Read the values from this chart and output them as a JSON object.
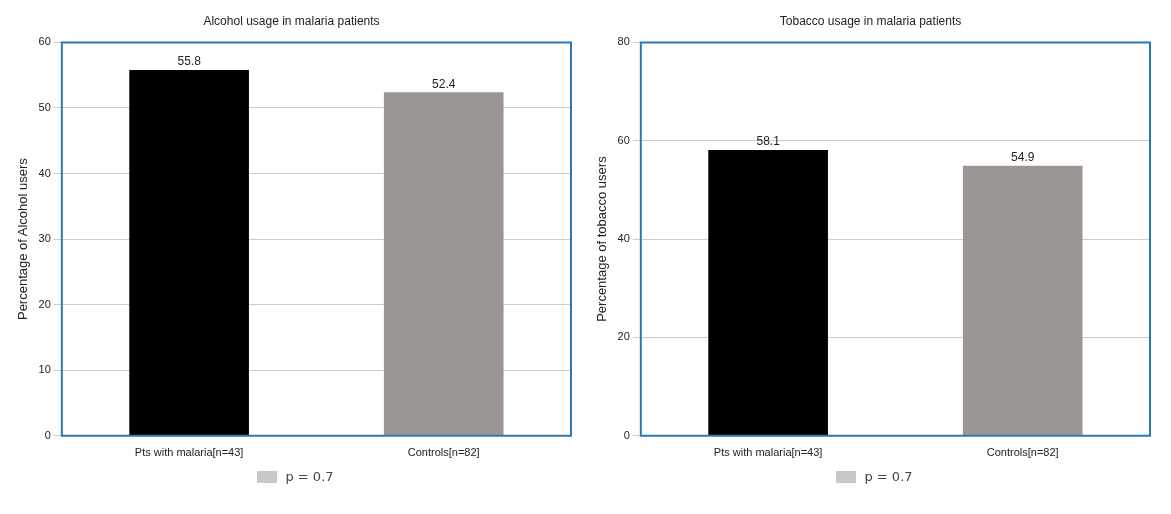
{
  "chart_data": [
    {
      "type": "bar",
      "title": "Alcohol usage in malaria patients",
      "ylabel": "Percentage of Alcohol users",
      "categories": [
        "Pts with malaria[n=43]",
        "Controls[n=82]"
      ],
      "values": [
        55.8,
        52.4
      ],
      "colors": [
        "#000000",
        "#9a9492"
      ],
      "ylim": [
        0,
        60
      ],
      "yticks": [
        0,
        10,
        20,
        30,
        40,
        50,
        60
      ],
      "grid": "y",
      "data_labels": true,
      "annotations": [
        "p = 0.7"
      ]
    },
    {
      "type": "bar",
      "title": "Tobacco usage in malaria patients",
      "ylabel": "Percentage of tobacco users",
      "categories": [
        "Pts with malaria[n=43]",
        "Controls[n=82]"
      ],
      "values": [
        58.1,
        54.9
      ],
      "colors": [
        "#000000",
        "#9a9492"
      ],
      "ylim": [
        0,
        80
      ],
      "yticks": [
        0,
        20,
        40,
        60,
        80
      ],
      "grid": "y",
      "data_labels": true,
      "annotations": [
        "p = 0.7"
      ]
    }
  ]
}
